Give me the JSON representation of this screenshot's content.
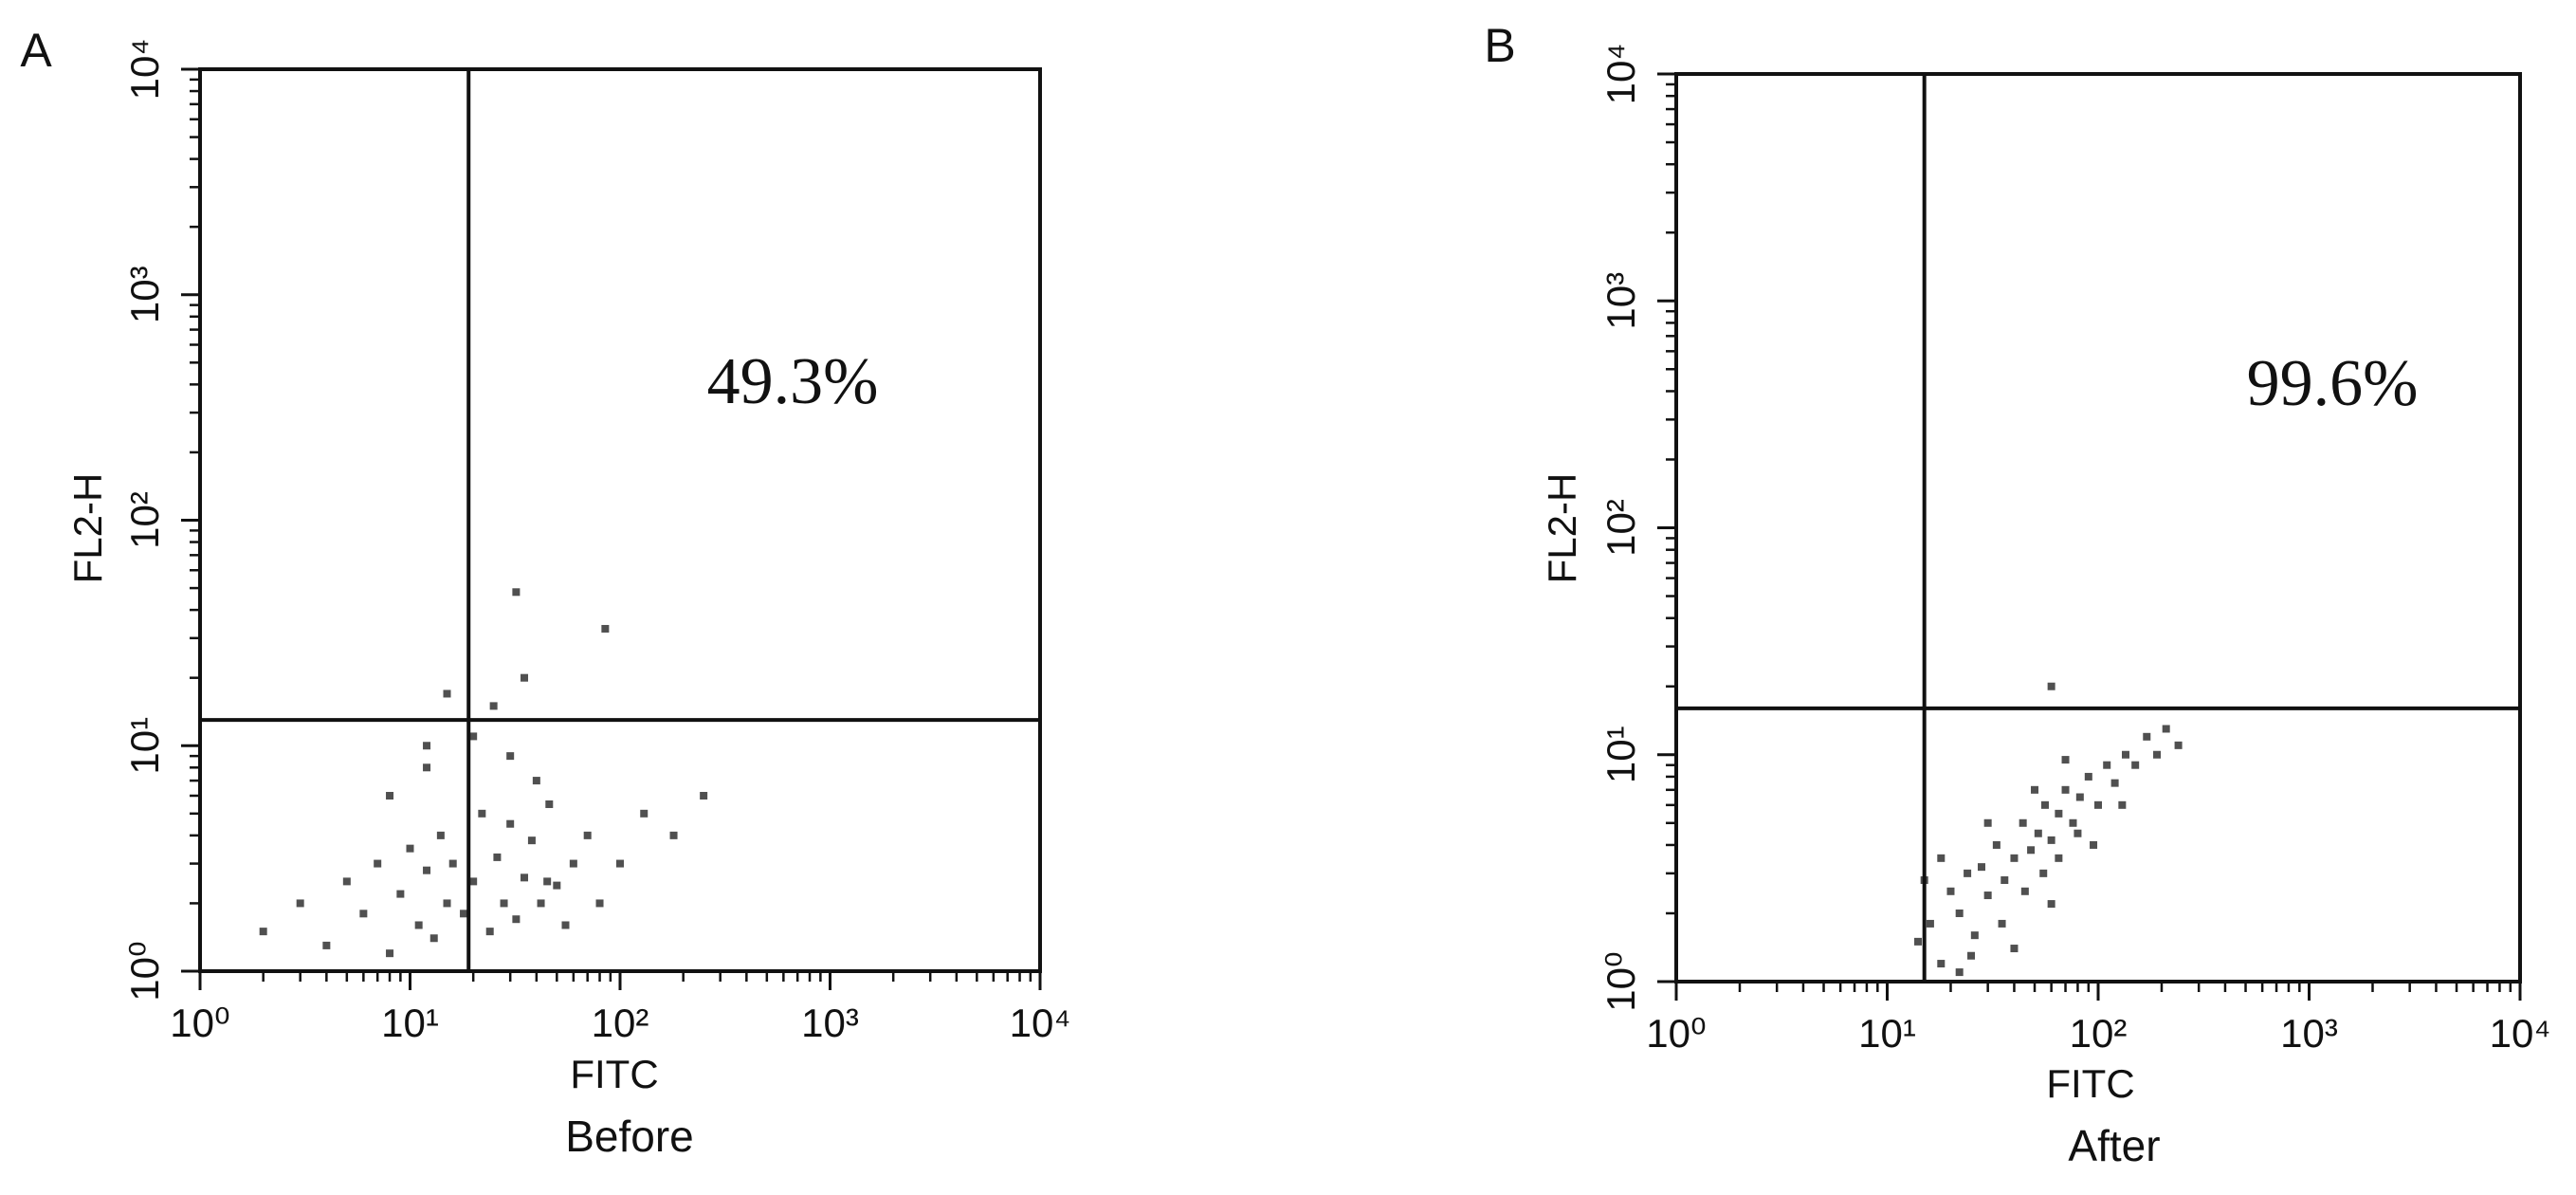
{
  "chart_data": [
    {
      "type": "scatter",
      "panel_label": "A",
      "annotation": "49.3%",
      "xlabel": "FITC",
      "ylabel": "FL2-H",
      "caption": "Before",
      "xlog": true,
      "ylog": true,
      "xlim": [
        1,
        10000
      ],
      "ylim": [
        1,
        10000
      ],
      "xticks": [
        {
          "value": 1,
          "label": "10⁰"
        },
        {
          "value": 10,
          "label": "10¹"
        },
        {
          "value": 100,
          "label": "10²"
        },
        {
          "value": 1000,
          "label": "10³"
        },
        {
          "value": 10000,
          "label": "10⁴"
        }
      ],
      "yticks": [
        {
          "value": 1,
          "label": "10⁰"
        },
        {
          "value": 10,
          "label": "10¹"
        },
        {
          "value": 100,
          "label": "10²"
        },
        {
          "value": 1000,
          "label": "10³"
        },
        {
          "value": 10000,
          "label": "10⁴"
        }
      ],
      "gate": {
        "x": 19,
        "y": 13
      },
      "color": "#505050",
      "x": [
        2,
        3,
        4,
        5,
        6,
        7,
        8,
        9,
        10,
        11,
        12,
        13,
        14,
        15,
        16,
        18,
        20,
        22,
        24,
        26,
        28,
        30,
        32,
        35,
        38,
        42,
        46,
        50,
        55,
        60,
        70,
        80,
        100,
        130,
        180,
        250,
        8,
        12,
        20,
        30,
        40,
        15,
        25,
        35,
        85,
        32,
        12,
        45
      ],
      "y": [
        1.5,
        2,
        1.3,
        2.5,
        1.8,
        3,
        1.2,
        2.2,
        3.5,
        1.6,
        2.8,
        1.4,
        4,
        2,
        3,
        1.8,
        2.5,
        5,
        1.5,
        3.2,
        2,
        4.5,
        1.7,
        2.6,
        3.8,
        2,
        5.5,
        2.4,
        1.6,
        3,
        4,
        2,
        3,
        5,
        4,
        6,
        6,
        8,
        11,
        9,
        7,
        17,
        15,
        20,
        33,
        48,
        10,
        2.5
      ]
    },
    {
      "type": "scatter",
      "panel_label": "B",
      "annotation": "99.6%",
      "xlabel": "FITC",
      "ylabel": "FL2-H",
      "caption": "After",
      "xlog": true,
      "ylog": true,
      "xlim": [
        1,
        10000
      ],
      "ylim": [
        1,
        10000
      ],
      "xticks": [
        {
          "value": 1,
          "label": "10⁰"
        },
        {
          "value": 10,
          "label": "10¹"
        },
        {
          "value": 100,
          "label": "10²"
        },
        {
          "value": 1000,
          "label": "10³"
        },
        {
          "value": 10000,
          "label": "10⁴"
        }
      ],
      "yticks": [
        {
          "value": 1,
          "label": "10⁰"
        },
        {
          "value": 10,
          "label": "10¹"
        },
        {
          "value": 100,
          "label": "10²"
        },
        {
          "value": 1000,
          "label": "10³"
        },
        {
          "value": 10000,
          "label": "10⁴"
        }
      ],
      "gate": {
        "x": 15,
        "y": 16
      },
      "color": "#505050",
      "x": [
        14,
        16,
        18,
        20,
        22,
        24,
        26,
        28,
        30,
        33,
        36,
        40,
        44,
        48,
        52,
        56,
        60,
        65,
        70,
        76,
        82,
        90,
        100,
        110,
        120,
        135,
        150,
        170,
        190,
        210,
        240,
        25,
        35,
        45,
        55,
        65,
        80,
        18,
        30,
        50,
        70,
        22,
        40,
        60,
        95,
        130,
        15,
        60
      ],
      "y": [
        1.5,
        1.8,
        1.2,
        2.5,
        2,
        3,
        1.6,
        3.2,
        2.4,
        4,
        2.8,
        3.5,
        5,
        3.8,
        4.5,
        6,
        4.2,
        5.5,
        7,
        5,
        6.5,
        8,
        6,
        9,
        7.5,
        10,
        9,
        12,
        10,
        13,
        11,
        1.3,
        1.8,
        2.5,
        3,
        3.5,
        4.5,
        3.5,
        5,
        7,
        9.5,
        1.1,
        1.4,
        2.2,
        4,
        6,
        2.8,
        20
      ]
    }
  ]
}
